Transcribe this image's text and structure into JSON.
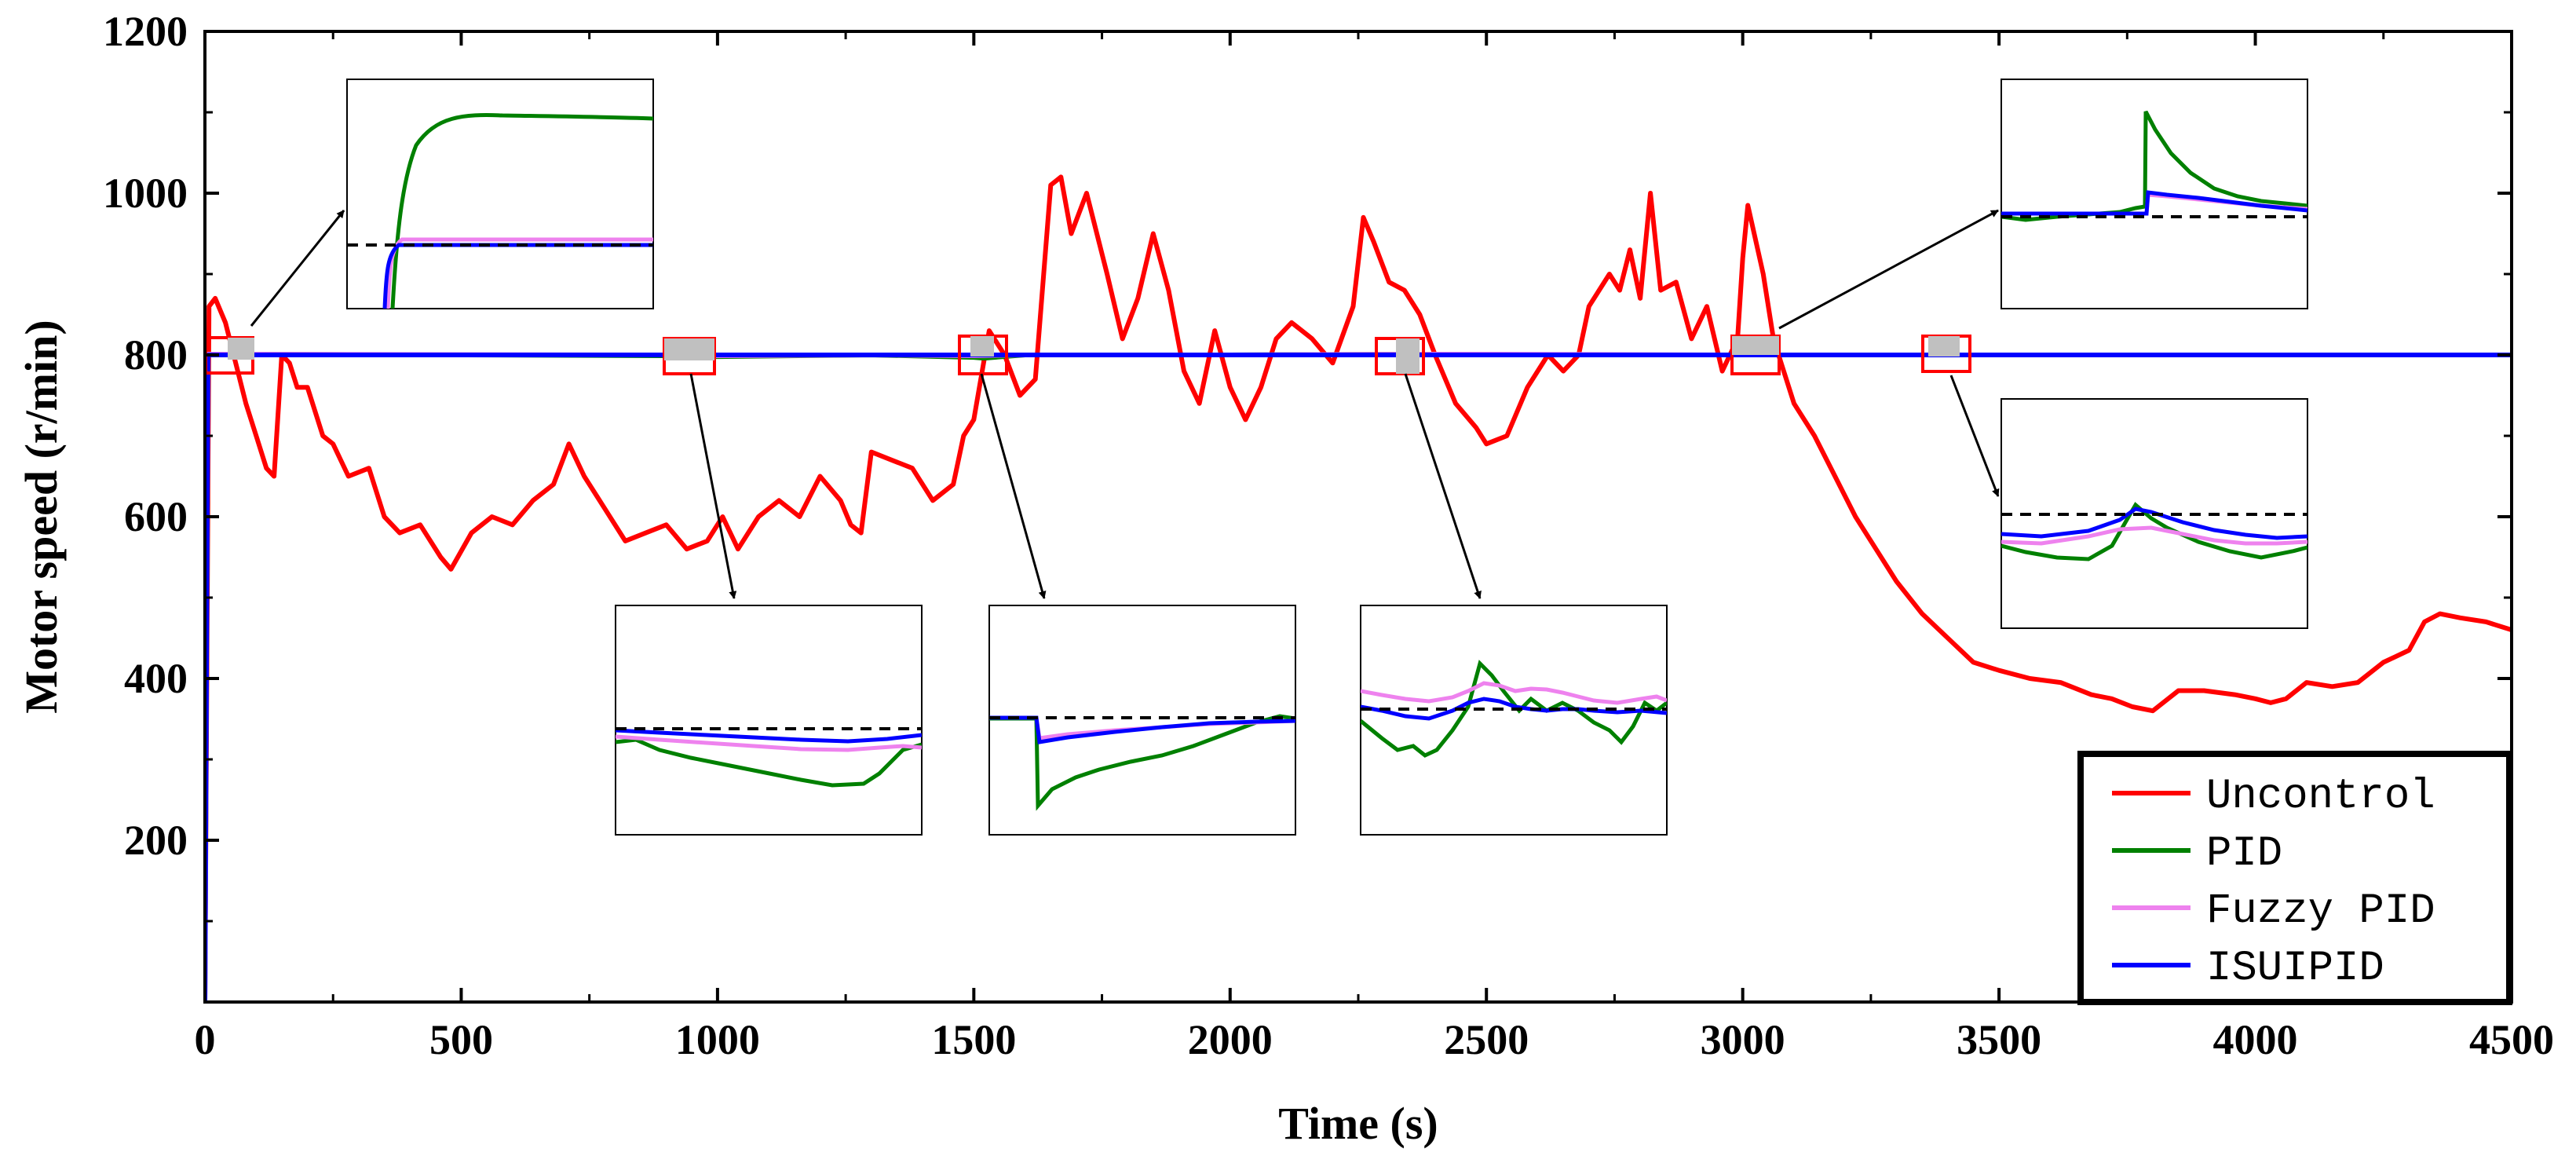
{
  "chart_data": {
    "type": "line",
    "xlabel": "Time (s)",
    "ylabel": "Motor speed (r/min)",
    "xlim": [
      0,
      4500
    ],
    "ylim": [
      0,
      1200
    ],
    "x_ticks": [
      "0",
      "500",
      "1000",
      "1500",
      "2000",
      "2500",
      "3000",
      "3500",
      "4000",
      "4500"
    ],
    "y_ticks": [
      "200",
      "400",
      "600",
      "800",
      "1000",
      "1200"
    ],
    "reference_speed": 800,
    "series": [
      {
        "name": "Uncontrol",
        "color": "#ff0000",
        "points": [
          [
            0,
            0
          ],
          [
            8,
            860
          ],
          [
            20,
            870
          ],
          [
            40,
            840
          ],
          [
            60,
            790
          ],
          [
            80,
            740
          ],
          [
            100,
            700
          ],
          [
            120,
            660
          ],
          [
            135,
            650
          ],
          [
            150,
            800
          ],
          [
            165,
            790
          ],
          [
            180,
            760
          ],
          [
            200,
            760
          ],
          [
            230,
            700
          ],
          [
            250,
            690
          ],
          [
            280,
            650
          ],
          [
            320,
            660
          ],
          [
            350,
            600
          ],
          [
            380,
            580
          ],
          [
            420,
            590
          ],
          [
            460,
            550
          ],
          [
            480,
            535
          ],
          [
            520,
            580
          ],
          [
            560,
            600
          ],
          [
            600,
            590
          ],
          [
            640,
            620
          ],
          [
            680,
            640
          ],
          [
            710,
            690
          ],
          [
            740,
            650
          ],
          [
            780,
            610
          ],
          [
            820,
            570
          ],
          [
            860,
            580
          ],
          [
            900,
            590
          ],
          [
            940,
            560
          ],
          [
            980,
            570
          ],
          [
            1010,
            600
          ],
          [
            1040,
            560
          ],
          [
            1080,
            600
          ],
          [
            1120,
            620
          ],
          [
            1160,
            600
          ],
          [
            1200,
            650
          ],
          [
            1240,
            620
          ],
          [
            1260,
            590
          ],
          [
            1280,
            580
          ],
          [
            1300,
            680
          ],
          [
            1340,
            670
          ],
          [
            1380,
            660
          ],
          [
            1420,
            620
          ],
          [
            1460,
            640
          ],
          [
            1480,
            700
          ],
          [
            1500,
            720
          ],
          [
            1530,
            830
          ],
          [
            1560,
            800
          ],
          [
            1590,
            750
          ],
          [
            1620,
            770
          ],
          [
            1650,
            1010
          ],
          [
            1670,
            1020
          ],
          [
            1690,
            950
          ],
          [
            1720,
            1000
          ],
          [
            1760,
            900
          ],
          [
            1790,
            820
          ],
          [
            1820,
            870
          ],
          [
            1850,
            950
          ],
          [
            1880,
            880
          ],
          [
            1910,
            780
          ],
          [
            1940,
            740
          ],
          [
            1970,
            830
          ],
          [
            2000,
            760
          ],
          [
            2030,
            720
          ],
          [
            2060,
            760
          ],
          [
            2090,
            820
          ],
          [
            2120,
            840
          ],
          [
            2160,
            820
          ],
          [
            2200,
            790
          ],
          [
            2240,
            860
          ],
          [
            2260,
            970
          ],
          [
            2280,
            940
          ],
          [
            2310,
            890
          ],
          [
            2340,
            880
          ],
          [
            2370,
            850
          ],
          [
            2400,
            800
          ],
          [
            2440,
            740
          ],
          [
            2480,
            710
          ],
          [
            2500,
            690
          ],
          [
            2540,
            700
          ],
          [
            2580,
            760
          ],
          [
            2620,
            800
          ],
          [
            2650,
            780
          ],
          [
            2680,
            800
          ],
          [
            2700,
            860
          ],
          [
            2740,
            900
          ],
          [
            2760,
            880
          ],
          [
            2780,
            930
          ],
          [
            2800,
            870
          ],
          [
            2820,
            1000
          ],
          [
            2840,
            880
          ],
          [
            2870,
            890
          ],
          [
            2900,
            820
          ],
          [
            2930,
            860
          ],
          [
            2960,
            780
          ],
          [
            2990,
            820
          ],
          [
            3000,
            920
          ],
          [
            3010,
            985
          ],
          [
            3040,
            900
          ],
          [
            3060,
            820
          ],
          [
            3080,
            780
          ],
          [
            3100,
            740
          ],
          [
            3140,
            700
          ],
          [
            3180,
            650
          ],
          [
            3220,
            600
          ],
          [
            3260,
            560
          ],
          [
            3300,
            520
          ],
          [
            3350,
            480
          ],
          [
            3400,
            450
          ],
          [
            3450,
            420
          ],
          [
            3500,
            410
          ],
          [
            3560,
            400
          ],
          [
            3620,
            395
          ],
          [
            3680,
            380
          ],
          [
            3720,
            375
          ],
          [
            3760,
            365
          ],
          [
            3800,
            360
          ],
          [
            3850,
            385
          ],
          [
            3900,
            385
          ],
          [
            3960,
            380
          ],
          [
            4000,
            375
          ],
          [
            4030,
            370
          ],
          [
            4060,
            375
          ],
          [
            4100,
            395
          ],
          [
            4150,
            390
          ],
          [
            4200,
            395
          ],
          [
            4250,
            420
          ],
          [
            4300,
            435
          ],
          [
            4330,
            470
          ],
          [
            4360,
            480
          ],
          [
            4400,
            475
          ],
          [
            4450,
            470
          ],
          [
            4500,
            460
          ]
        ]
      },
      {
        "name": "PID",
        "color": "#008000",
        "points": [
          [
            0,
            0
          ],
          [
            6,
            800
          ],
          [
            100,
            801
          ],
          [
            900,
            799
          ],
          [
            1000,
            798
          ],
          [
            1300,
            800
          ],
          [
            1500,
            797
          ],
          [
            1520,
            796
          ],
          [
            1600,
            800
          ],
          [
            2000,
            800
          ],
          [
            2400,
            801
          ],
          [
            2500,
            800
          ],
          [
            3000,
            800
          ],
          [
            3800,
            800
          ],
          [
            4500,
            800
          ]
        ]
      },
      {
        "name": "Fuzzy PID",
        "color": "#ee82ee",
        "points": [
          [
            0,
            0
          ],
          [
            6,
            801
          ],
          [
            100,
            801
          ],
          [
            900,
            800
          ],
          [
            1000,
            799
          ],
          [
            1300,
            800
          ],
          [
            1500,
            799
          ],
          [
            1600,
            800
          ],
          [
            2000,
            800
          ],
          [
            2400,
            801
          ],
          [
            2500,
            801
          ],
          [
            3000,
            800
          ],
          [
            3800,
            800
          ],
          [
            4500,
            800
          ]
        ]
      },
      {
        "name": "ISUIPID",
        "color": "#0000ff",
        "points": [
          [
            0,
            0
          ],
          [
            6,
            800
          ],
          [
            100,
            800
          ],
          [
            900,
            800
          ],
          [
            1500,
            800
          ],
          [
            2000,
            800
          ],
          [
            2500,
            800
          ],
          [
            3000,
            800
          ],
          [
            3800,
            800
          ],
          [
            4500,
            800
          ]
        ]
      }
    ],
    "legend": {
      "position": "bottom-right",
      "entries": [
        "Uncontrol",
        "PID",
        "Fuzzy PID",
        "ISUIPID"
      ]
    },
    "zoom_windows": [
      {
        "name": "zoom-startup",
        "near_time": 60
      },
      {
        "name": "zoom-1000s",
        "near_time": 950
      },
      {
        "name": "zoom-1500s",
        "near_time": 1520
      },
      {
        "name": "zoom-2300s",
        "near_time": 2330
      },
      {
        "name": "zoom-3000s",
        "near_time": 3020
      },
      {
        "name": "zoom-3400s",
        "near_time": 3390
      }
    ]
  }
}
